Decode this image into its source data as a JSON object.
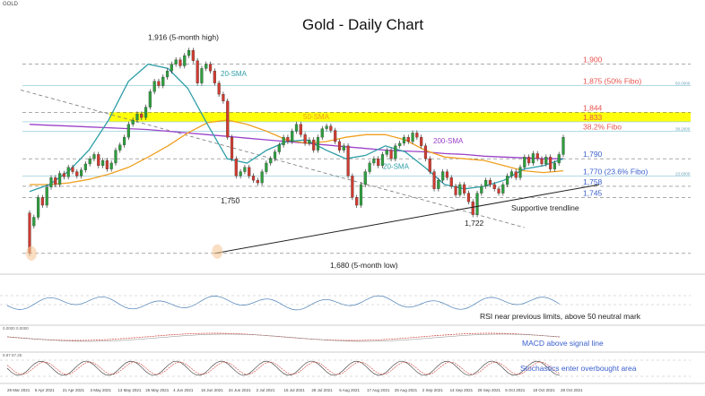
{
  "chart_data": {
    "type": "candlestick",
    "title": "Gold - Daily Chart",
    "symbol_label": "GOLD",
    "ylim": [
      1660,
      1935
    ],
    "x_dates": [
      "29 Mar 2021",
      "5 Apr 2021",
      "21 Apr 2021",
      "3 May 2021",
      "13 May 2021",
      "25 May 2021",
      "4 Jun 2021",
      "16 Jun 2021",
      "24 Jun 2021",
      "2 Jul 2021",
      "15 Jul 2021",
      "28 Jul 2021",
      "5 Aug 2021",
      "17 Aug 2021",
      "25 Aug 2021",
      "2 Sep 2021",
      "14 Sep 2021",
      "29 Sep 2021",
      "5 Oct 2021",
      "18 Oct 2021",
      "28 Oct 2021"
    ],
    "levels": [
      {
        "value": 1900,
        "label": "1,900",
        "color": "#e8534f",
        "style": "dashed"
      },
      {
        "value": 1875,
        "label": "1,875 (50% Fibo)",
        "color": "#e8534f",
        "style": "fibo"
      },
      {
        "value": 1844,
        "label": "1,844",
        "color": "#e8534f",
        "style": "dashed"
      },
      {
        "value": 1833,
        "label": "1,833",
        "color": "#e8534f",
        "style": "fibo"
      },
      {
        "value": 1822,
        "label": "38.2% Fibo",
        "color": "#e8534f",
        "style": "fibo"
      },
      {
        "value": 1790,
        "label": "1,790",
        "color": "#3a5fcd",
        "style": "dashed"
      },
      {
        "value": 1770,
        "label": "1,770 (23.6% Fibo)",
        "color": "#3a5fcd",
        "style": "fibo"
      },
      {
        "value": 1758,
        "label": "1,758",
        "color": "#3a5fcd",
        "style": "dashed"
      },
      {
        "value": 1745,
        "label": "1,745",
        "color": "#3a5fcd",
        "style": "dashed"
      },
      {
        "value": 1680,
        "label": "",
        "color": "#3a5fcd",
        "style": "dashed"
      }
    ],
    "fibo_tags": [
      "38.2000",
      "50.0000",
      "23.6000"
    ],
    "resistance_zone": [
      1833,
      1844
    ],
    "candles": [
      [
        1727,
        1680
      ],
      [
        1712,
        1722
      ],
      [
        1722,
        1745
      ],
      [
        1745,
        1736
      ],
      [
        1736,
        1757
      ],
      [
        1757,
        1768
      ],
      [
        1768,
        1760
      ],
      [
        1760,
        1773
      ],
      [
        1773,
        1769
      ],
      [
        1769,
        1780
      ],
      [
        1780,
        1775
      ],
      [
        1775,
        1770
      ],
      [
        1770,
        1777
      ],
      [
        1777,
        1784
      ],
      [
        1784,
        1790
      ],
      [
        1790,
        1795
      ],
      [
        1795,
        1782
      ],
      [
        1782,
        1788
      ],
      [
        1788,
        1778
      ],
      [
        1778,
        1785
      ],
      [
        1785,
        1800
      ],
      [
        1800,
        1806
      ],
      [
        1806,
        1815
      ],
      [
        1815,
        1830
      ],
      [
        1830,
        1835
      ],
      [
        1835,
        1842
      ],
      [
        1842,
        1838
      ],
      [
        1838,
        1850
      ],
      [
        1850,
        1868
      ],
      [
        1868,
        1880
      ],
      [
        1880,
        1875
      ],
      [
        1875,
        1885
      ],
      [
        1885,
        1892
      ],
      [
        1892,
        1900
      ],
      [
        1900,
        1905
      ],
      [
        1905,
        1898
      ],
      [
        1898,
        1910
      ],
      [
        1910,
        1916
      ],
      [
        1916,
        1904
      ],
      [
        1904,
        1878
      ],
      [
        1878,
        1895
      ],
      [
        1895,
        1900
      ],
      [
        1900,
        1892
      ],
      [
        1892,
        1878
      ],
      [
        1878,
        1865
      ],
      [
        1865,
        1857
      ],
      [
        1857,
        1815
      ],
      [
        1815,
        1790
      ],
      [
        1790,
        1770
      ],
      [
        1770,
        1775
      ],
      [
        1775,
        1780
      ],
      [
        1780,
        1770
      ],
      [
        1770,
        1765
      ],
      [
        1765,
        1762
      ],
      [
        1762,
        1775
      ],
      [
        1775,
        1785
      ],
      [
        1785,
        1790
      ],
      [
        1790,
        1798
      ],
      [
        1798,
        1806
      ],
      [
        1806,
        1815
      ],
      [
        1815,
        1810
      ],
      [
        1810,
        1822
      ],
      [
        1822,
        1830
      ],
      [
        1830,
        1818
      ],
      [
        1818,
        1808
      ],
      [
        1808,
        1812
      ],
      [
        1812,
        1800
      ],
      [
        1800,
        1815
      ],
      [
        1815,
        1825
      ],
      [
        1825,
        1828
      ],
      [
        1828,
        1823
      ],
      [
        1823,
        1810
      ],
      [
        1810,
        1800
      ],
      [
        1800,
        1805
      ],
      [
        1805,
        1770
      ],
      [
        1770,
        1745
      ],
      [
        1745,
        1736
      ],
      [
        1736,
        1760
      ],
      [
        1760,
        1775
      ],
      [
        1775,
        1785
      ],
      [
        1785,
        1790
      ],
      [
        1790,
        1782
      ],
      [
        1782,
        1795
      ],
      [
        1795,
        1800
      ],
      [
        1800,
        1790
      ],
      [
        1790,
        1805
      ],
      [
        1805,
        1808
      ],
      [
        1808,
        1815
      ],
      [
        1815,
        1810
      ],
      [
        1810,
        1820
      ],
      [
        1820,
        1815
      ],
      [
        1815,
        1805
      ],
      [
        1805,
        1790
      ],
      [
        1790,
        1775
      ],
      [
        1775,
        1755
      ],
      [
        1755,
        1765
      ],
      [
        1765,
        1775
      ],
      [
        1775,
        1768
      ],
      [
        1768,
        1758
      ],
      [
        1758,
        1748
      ],
      [
        1748,
        1760
      ],
      [
        1760,
        1750
      ],
      [
        1750,
        1740
      ],
      [
        1740,
        1725
      ],
      [
        1725,
        1750
      ],
      [
        1750,
        1758
      ],
      [
        1758,
        1765
      ],
      [
        1765,
        1760
      ],
      [
        1760,
        1755
      ],
      [
        1755,
        1750
      ],
      [
        1750,
        1760
      ],
      [
        1760,
        1770
      ],
      [
        1770,
        1775
      ],
      [
        1775,
        1768
      ],
      [
        1768,
        1780
      ],
      [
        1780,
        1792
      ],
      [
        1792,
        1785
      ],
      [
        1785,
        1796
      ],
      [
        1796,
        1790
      ],
      [
        1790,
        1784
      ],
      [
        1784,
        1792
      ],
      [
        1792,
        1778
      ],
      [
        1778,
        1785
      ],
      [
        1785,
        1795
      ],
      [
        1795,
        1815
      ]
    ],
    "sma200": [
      1830,
      1829,
      1828,
      1827,
      1826,
      1825,
      1824,
      1822,
      1820,
      1818,
      1816,
      1814,
      1812,
      1810,
      1808,
      1806,
      1804,
      1802,
      1800,
      1799,
      1798,
      1796,
      1795,
      1793,
      1792,
      1791,
      1790,
      1790
    ],
    "sma50": [
      1760,
      1760,
      1762,
      1766,
      1772,
      1780,
      1792,
      1805,
      1820,
      1832,
      1835,
      1830,
      1822,
      1812,
      1808,
      1810,
      1815,
      1818,
      1818,
      1812,
      1800,
      1792,
      1790,
      1788,
      1782,
      1776,
      1774,
      1776
    ],
    "sma20": [
      1752,
      1760,
      1776,
      1800,
      1835,
      1880,
      1900,
      1895,
      1872,
      1830,
      1790,
      1785,
      1800,
      1810,
      1812,
      1800,
      1790,
      1794,
      1805,
      1798,
      1780,
      1760,
      1755,
      1758,
      1765,
      1778,
      1782,
      1790
    ],
    "downtrend": {
      "start": [
        0,
        1870
      ],
      "end": [
        115,
        1710
      ]
    },
    "uptrend": {
      "start": [
        43,
        1680
      ],
      "end": [
        125,
        1762
      ]
    },
    "annotations": {
      "high": "1,916 (5-month high)",
      "low": "1,680 (5-month low)",
      "l1750": "1,750",
      "l1722": "1,722",
      "sma20_a": "20-SMA",
      "sma20_b": "20-SMA",
      "sma50": "50-SMA",
      "sma200": "200-SMA",
      "trendline": "Supportive trendline"
    },
    "indicators": {
      "rsi_label": "RSI near previous limits, above 50 neutral mark",
      "macd_label": "MACD above signal line",
      "stoch_label": "Stochastics enter overbought area",
      "rsi_values": "",
      "macd_values": "0.0000 0.0000",
      "stoch_values": "9.87 67.25"
    },
    "colors": {
      "bull": "#2e9e3e",
      "bear": "#d03a2f",
      "sma200": "#9b42c9",
      "sma50": "#f0a020",
      "sma20": "#2e9ea7",
      "zone": "#ffff00",
      "red_text": "#e8534f",
      "blue_text": "#3a5fcd"
    }
  }
}
